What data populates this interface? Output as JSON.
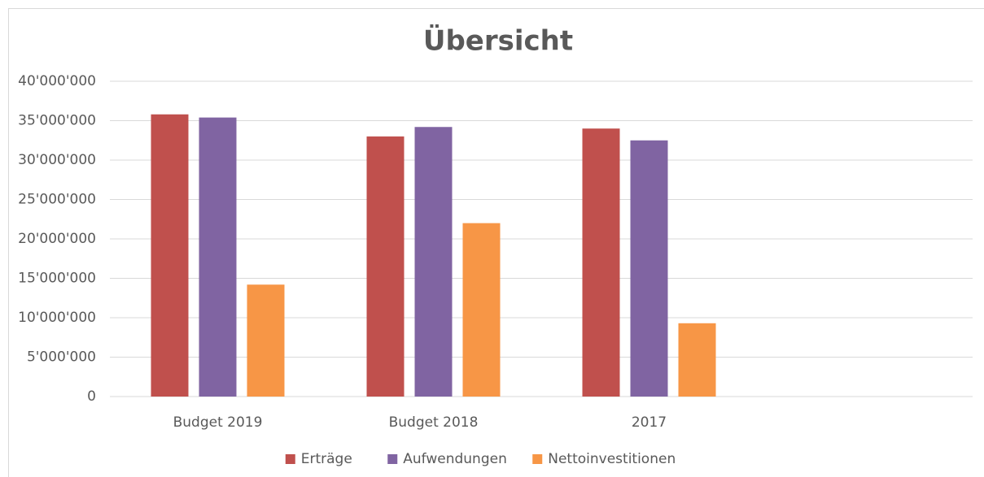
{
  "chart_data": {
    "type": "bar",
    "title": "Übersicht",
    "categories": [
      "Budget 2019",
      "Budget 2018",
      "2017",
      null
    ],
    "series": [
      {
        "name": "Erträge",
        "color": "#c0504d",
        "values": [
          35800000,
          33000000,
          34000000,
          null
        ]
      },
      {
        "name": "Aufwendungen",
        "color": "#8064a2",
        "values": [
          35400000,
          34200000,
          32500000,
          null
        ]
      },
      {
        "name": "Nettoinvestitionen",
        "color": "#f79646",
        "values": [
          14200000,
          22000000,
          9300000,
          null
        ]
      }
    ],
    "ylim": [
      0,
      40000000
    ],
    "yticks": [
      0,
      {
        "value": 5000000,
        "label": "5'000'000"
      },
      {
        "value": 10000000,
        "label": "10'000'000"
      },
      {
        "value": 15000000,
        "label": "15'000'000"
      },
      {
        "value": 20000000,
        "label": "20'000'000"
      },
      {
        "value": 25000000,
        "label": "25'000'000"
      },
      {
        "value": 30000000,
        "label": "30'000'000"
      },
      {
        "value": 35000000,
        "label": "35'000'000"
      },
      {
        "value": 40000000,
        "label": "40'000'000"
      }
    ],
    "grid": true,
    "legend": "bottom"
  }
}
